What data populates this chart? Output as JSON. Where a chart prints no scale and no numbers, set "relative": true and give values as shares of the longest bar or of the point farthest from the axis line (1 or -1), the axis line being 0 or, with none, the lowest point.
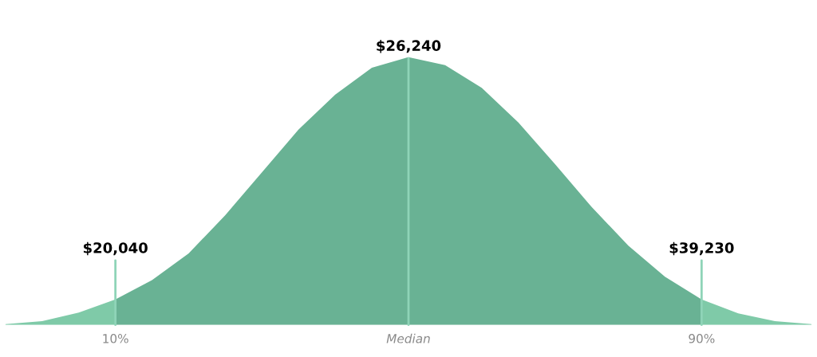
{
  "chart_data": {
    "type": "area",
    "relative": true,
    "categories": [
      null,
      null,
      null,
      "10%",
      null,
      null,
      null,
      null,
      null,
      null,
      null,
      "Median",
      null,
      null,
      null,
      null,
      null,
      null,
      null,
      "90%",
      null,
      null,
      null
    ],
    "series": [
      {
        "color": "#7fcaa8",
        "values": [
          0.003,
          0.014,
          0.046,
          0.095,
          null,
          null,
          null,
          null,
          null,
          null,
          null,
          null,
          null,
          null,
          null,
          null,
          null,
          null,
          null,
          0.095,
          0.043,
          0.014,
          0.003
        ]
      },
      {
        "color": "#69b294",
        "values": [
          null,
          null,
          null,
          0.095,
          0.167,
          0.267,
          0.41,
          0.57,
          0.73,
          0.86,
          0.96,
          1.0,
          0.97,
          0.885,
          0.756,
          0.6,
          0.44,
          0.296,
          0.18,
          0.095,
          null,
          null,
          null
        ]
      }
    ],
    "annotations": [
      {
        "text": "$20,040",
        "x": "10%",
        "y": 0
      },
      {
        "text": "$26,240",
        "x": "Median",
        "y": 0
      },
      {
        "text": "$39,230",
        "x": "90%",
        "y": 0
      }
    ],
    "grid": false,
    "legend": false
  }
}
